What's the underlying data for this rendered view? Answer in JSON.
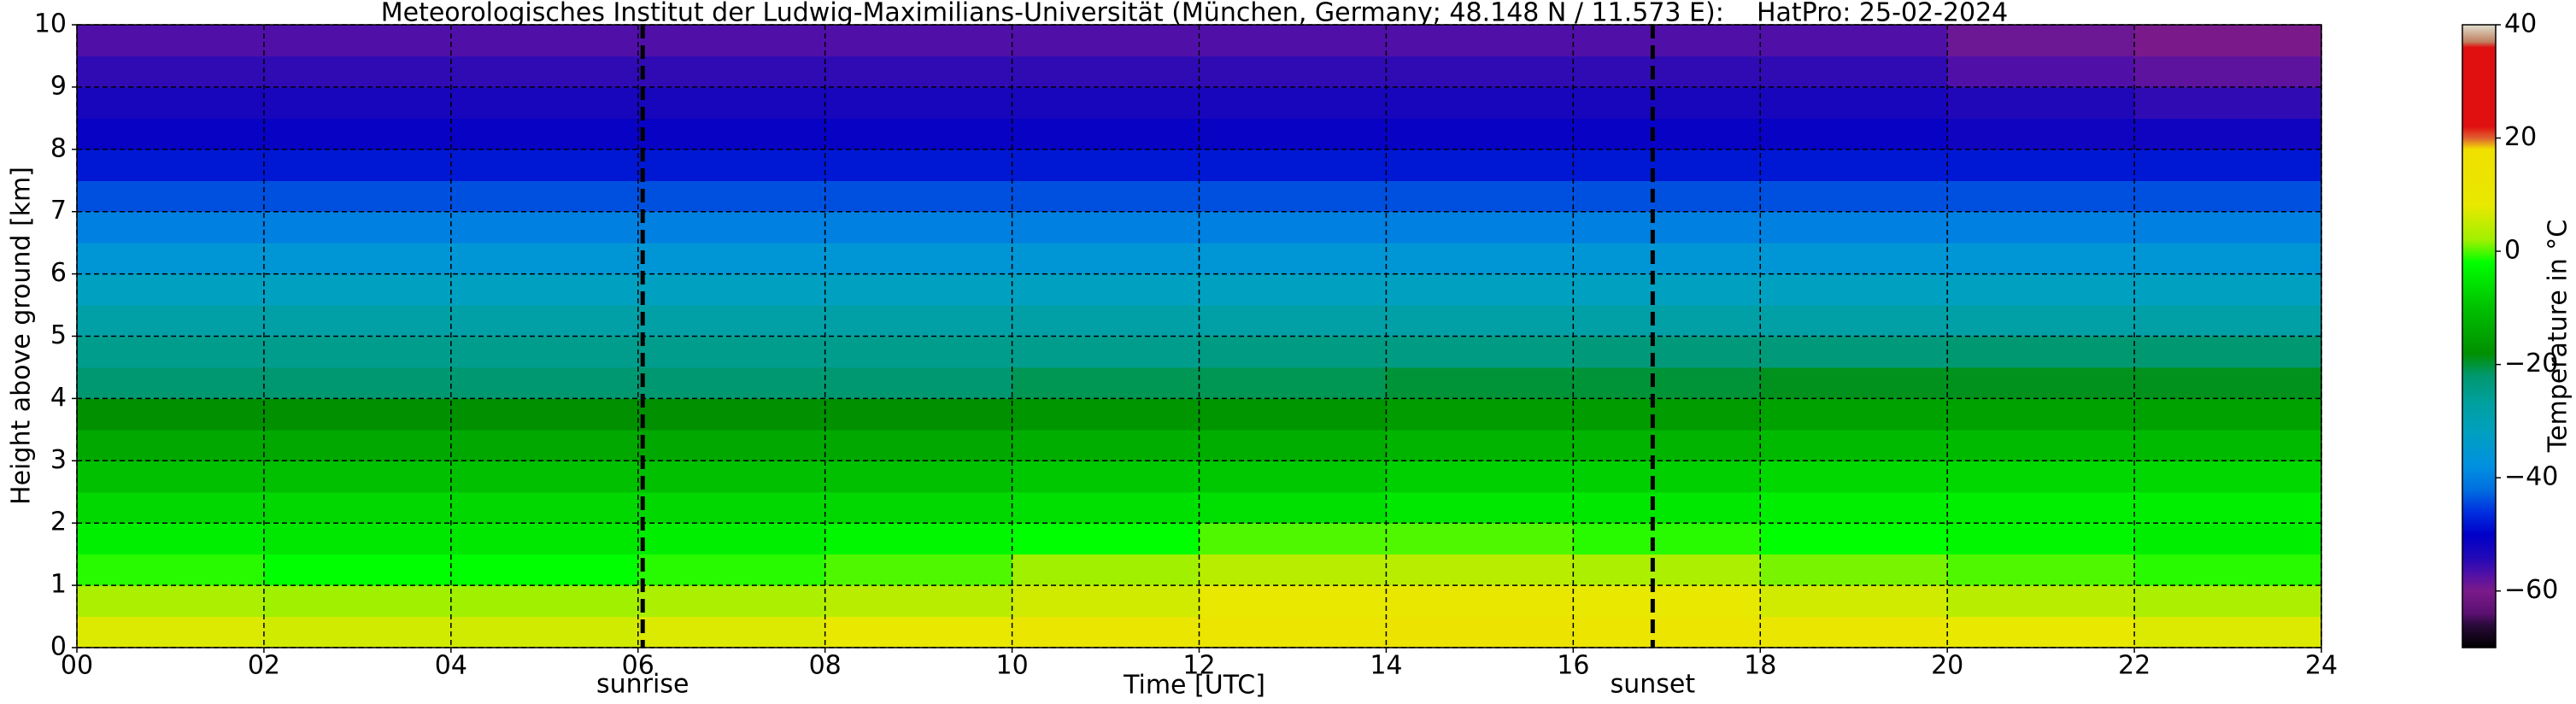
{
  "chart_data": {
    "type": "heatmap",
    "title": "Meteorologisches Institut der Ludwig-Maximilians-Universität (München, Germany; 48.148 N / 11.573 E):    HatPro: 25-02-2024",
    "xlabel": "Time [UTC]",
    "ylabel": "Height above ground [km]",
    "xlim": [
      0,
      24
    ],
    "ylim": [
      0,
      10
    ],
    "xticks": [
      {
        "value": 0,
        "label": "00"
      },
      {
        "value": 2,
        "label": "02"
      },
      {
        "value": 4,
        "label": "04"
      },
      {
        "value": 6,
        "label": "06"
      },
      {
        "value": 8,
        "label": "08"
      },
      10,
      12,
      14,
      16,
      18,
      20,
      22,
      24
    ],
    "yticks": [
      0,
      1,
      2,
      3,
      4,
      5,
      6,
      7,
      8,
      9,
      10
    ],
    "grid": true,
    "x_edges": [
      0,
      2,
      4,
      6,
      8,
      10,
      12,
      14,
      16,
      18,
      20,
      22,
      24
    ],
    "y_edges": [
      0,
      0.5,
      1,
      1.5,
      2,
      2.5,
      3,
      3.5,
      4,
      4.5,
      5,
      5.5,
      6,
      6.5,
      7,
      7.5,
      8,
      8.5,
      9,
      9.5,
      10
    ],
    "z": [
      [
        7,
        6,
        6,
        7,
        8,
        10,
        12,
        13,
        12,
        10,
        8,
        7
      ],
      [
        3,
        2,
        2,
        3,
        4,
        6,
        8,
        9,
        8,
        6,
        4,
        3
      ],
      [
        -1,
        -2,
        -2,
        -1,
        0,
        2,
        4,
        4,
        3,
        1,
        0,
        -1
      ],
      [
        -4,
        -5,
        -5,
        -4,
        -3,
        -2,
        0,
        0,
        -1,
        -2,
        -3,
        -4
      ],
      [
        -7,
        -7,
        -7,
        -7,
        -7,
        -6,
        -6,
        -5,
        -5,
        -4,
        -4,
        -4
      ],
      [
        -10,
        -10,
        -10,
        -10,
        -10,
        -9,
        -9,
        -8,
        -8,
        -7,
        -7,
        -7
      ],
      [
        -14,
        -14,
        -14,
        -14,
        -14,
        -13,
        -13,
        -12,
        -12,
        -11,
        -11,
        -11
      ],
      [
        -18,
        -18,
        -18,
        -18,
        -18,
        -17,
        -17,
        -16,
        -16,
        -15,
        -15,
        -15
      ],
      [
        -22,
        -22,
        -22,
        -22,
        -22,
        -21,
        -21,
        -20,
        -20,
        -19,
        -19,
        -19
      ],
      [
        -25,
        -25,
        -25,
        -25,
        -25,
        -25,
        -24,
        -24,
        -23,
        -23,
        -22,
        -22
      ],
      [
        -28,
        -28,
        -28,
        -28,
        -28,
        -28,
        -28,
        -28,
        -28,
        -28,
        -28,
        -28
      ],
      [
        -32,
        -32,
        -32,
        -32,
        -32,
        -32,
        -32,
        -32,
        -32,
        -32,
        -32,
        -32
      ],
      [
        -36,
        -36,
        -36,
        -36,
        -36,
        -36,
        -36,
        -36,
        -36,
        -36,
        -36,
        -36
      ],
      [
        -40,
        -40,
        -40,
        -40,
        -40,
        -40,
        -40,
        -40,
        -40,
        -40,
        -40,
        -40
      ],
      [
        -44,
        -44,
        -44,
        -44,
        -44,
        -44,
        -44,
        -44,
        -44,
        -44,
        -44,
        -44
      ],
      [
        -48,
        -48,
        -48,
        -48,
        -48,
        -48,
        -48,
        -48,
        -48,
        -48,
        -48,
        -48
      ],
      [
        -51,
        -51,
        -51,
        -51,
        -51,
        -51,
        -51,
        -51,
        -51,
        -51,
        -52,
        -52
      ],
      [
        -53,
        -53,
        -53,
        -53,
        -53,
        -53,
        -53,
        -53,
        -53,
        -53,
        -54,
        -55
      ],
      [
        -55,
        -55,
        -55,
        -55,
        -55,
        -55,
        -55,
        -55,
        -55,
        -55,
        -57,
        -58
      ],
      [
        -57,
        -57,
        -57,
        -57,
        -57,
        -57,
        -57,
        -57,
        -57,
        -57,
        -59,
        -60
      ]
    ],
    "annotations": [
      {
        "x": 6.05,
        "label": "sunrise"
      },
      {
        "x": 16.85,
        "label": "sunset"
      }
    ],
    "colorbar": {
      "label": "Temperature in °C",
      "clim": [
        -70,
        40
      ],
      "ticks": [
        {
          "value": -60,
          "label": "−60"
        },
        {
          "value": -40,
          "label": "−40"
        },
        {
          "value": -20,
          "label": "−20"
        },
        0,
        20,
        40
      ],
      "stops": [
        {
          "value": -70,
          "color": "#000000"
        },
        {
          "value": -66,
          "color": "#2a0a3a"
        },
        {
          "value": -64,
          "color": "#5a1070"
        },
        {
          "value": -60,
          "color": "#7a1a8a"
        },
        {
          "value": -57,
          "color": "#5010a8"
        },
        {
          "value": -54,
          "color": "#2008b8"
        },
        {
          "value": -50,
          "color": "#0000c8"
        },
        {
          "value": -46,
          "color": "#0030e0"
        },
        {
          "value": -42,
          "color": "#0070e0"
        },
        {
          "value": -38,
          "color": "#0090e0"
        },
        {
          "value": -32,
          "color": "#00a0c0"
        },
        {
          "value": -27,
          "color": "#00a0a0"
        },
        {
          "value": -22,
          "color": "#009870"
        },
        {
          "value": -18,
          "color": "#009000"
        },
        {
          "value": -10,
          "color": "#00c000"
        },
        {
          "value": -2,
          "color": "#00ff00"
        },
        {
          "value": 2,
          "color": "#a0f000"
        },
        {
          "value": 8,
          "color": "#e8e800"
        },
        {
          "value": 18,
          "color": "#f0e000"
        },
        {
          "value": 20,
          "color": "#e06030"
        },
        {
          "value": 22,
          "color": "#e01010"
        },
        {
          "value": 36,
          "color": "#e01010"
        },
        {
          "value": 37,
          "color": "#c08060"
        },
        {
          "value": 40,
          "color": "#e0e0d0"
        }
      ]
    }
  }
}
